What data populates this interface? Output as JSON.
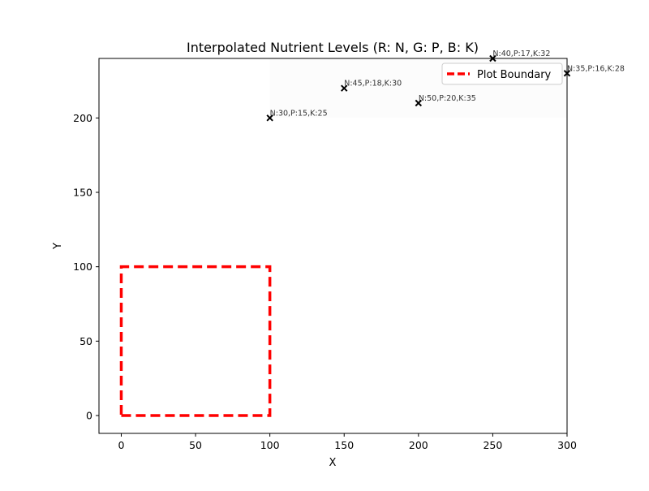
{
  "chart_data": {
    "type": "scatter",
    "title": "Interpolated Nutrient Levels (R: N, G: P, B: K)",
    "xlabel": "X",
    "ylabel": "Y",
    "xlim": [
      -15,
      300
    ],
    "ylim": [
      -12,
      240
    ],
    "grid": false,
    "xticks": [
      0,
      50,
      100,
      150,
      200,
      250,
      300
    ],
    "yticks": [
      0,
      50,
      100,
      150,
      200
    ],
    "sample_points": [
      {
        "x": 100,
        "y": 200,
        "label": "N:30,P:15,K:25"
      },
      {
        "x": 150,
        "y": 220,
        "label": "N:45,P:18,K:30"
      },
      {
        "x": 200,
        "y": 210,
        "label": "N:50,P:20,K:35"
      },
      {
        "x": 250,
        "y": 240,
        "label": "N:40,P:17,K:32"
      },
      {
        "x": 300,
        "y": 230,
        "label": "N:35,P:16,K:28"
      }
    ],
    "interpolated_region": {
      "x": [
        100,
        300
      ],
      "y": [
        200,
        240
      ],
      "color": "#fcfcfc"
    },
    "plot_boundary": {
      "name": "Plot Boundary",
      "x": [
        0,
        100,
        100,
        0,
        0
      ],
      "y": [
        0,
        0,
        100,
        100,
        0
      ],
      "color": "#ff0000",
      "style": "dashed"
    },
    "legend": {
      "position": "top-right",
      "entries": [
        "Plot Boundary"
      ]
    }
  }
}
